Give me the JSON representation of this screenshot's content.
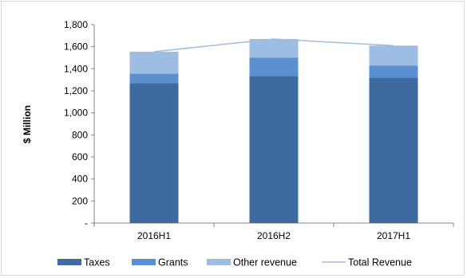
{
  "chart_data": {
    "type": "bar",
    "stacked": true,
    "title": "",
    "xlabel": "",
    "ylabel": "$ Million",
    "categories": [
      "2016H1",
      "2016H2",
      "2017H1"
    ],
    "series": [
      {
        "name": "Taxes",
        "type": "bar",
        "color": "#3d6a9f",
        "values": [
          1270,
          1335,
          1320
        ]
      },
      {
        "name": "Grants",
        "type": "bar",
        "color": "#5b8fd0",
        "values": [
          85,
          165,
          110
        ]
      },
      {
        "name": "Other revenue",
        "type": "bar",
        "color": "#9dbde3",
        "values": [
          200,
          170,
          180
        ]
      },
      {
        "name": "Total Revenue",
        "type": "line",
        "color": "#9fbce0",
        "values": [
          1555,
          1670,
          1610
        ]
      }
    ],
    "ylim": [
      0,
      1800
    ],
    "yticks": [
      0,
      200,
      400,
      600,
      800,
      1000,
      1200,
      1400,
      1600,
      1800
    ],
    "ytick_labels": [
      "-",
      "200",
      "400",
      "600",
      "800",
      "1,000",
      "1,200",
      "1,400",
      "1,600",
      "1,800"
    ],
    "grid": false,
    "legend_position": "bottom"
  }
}
